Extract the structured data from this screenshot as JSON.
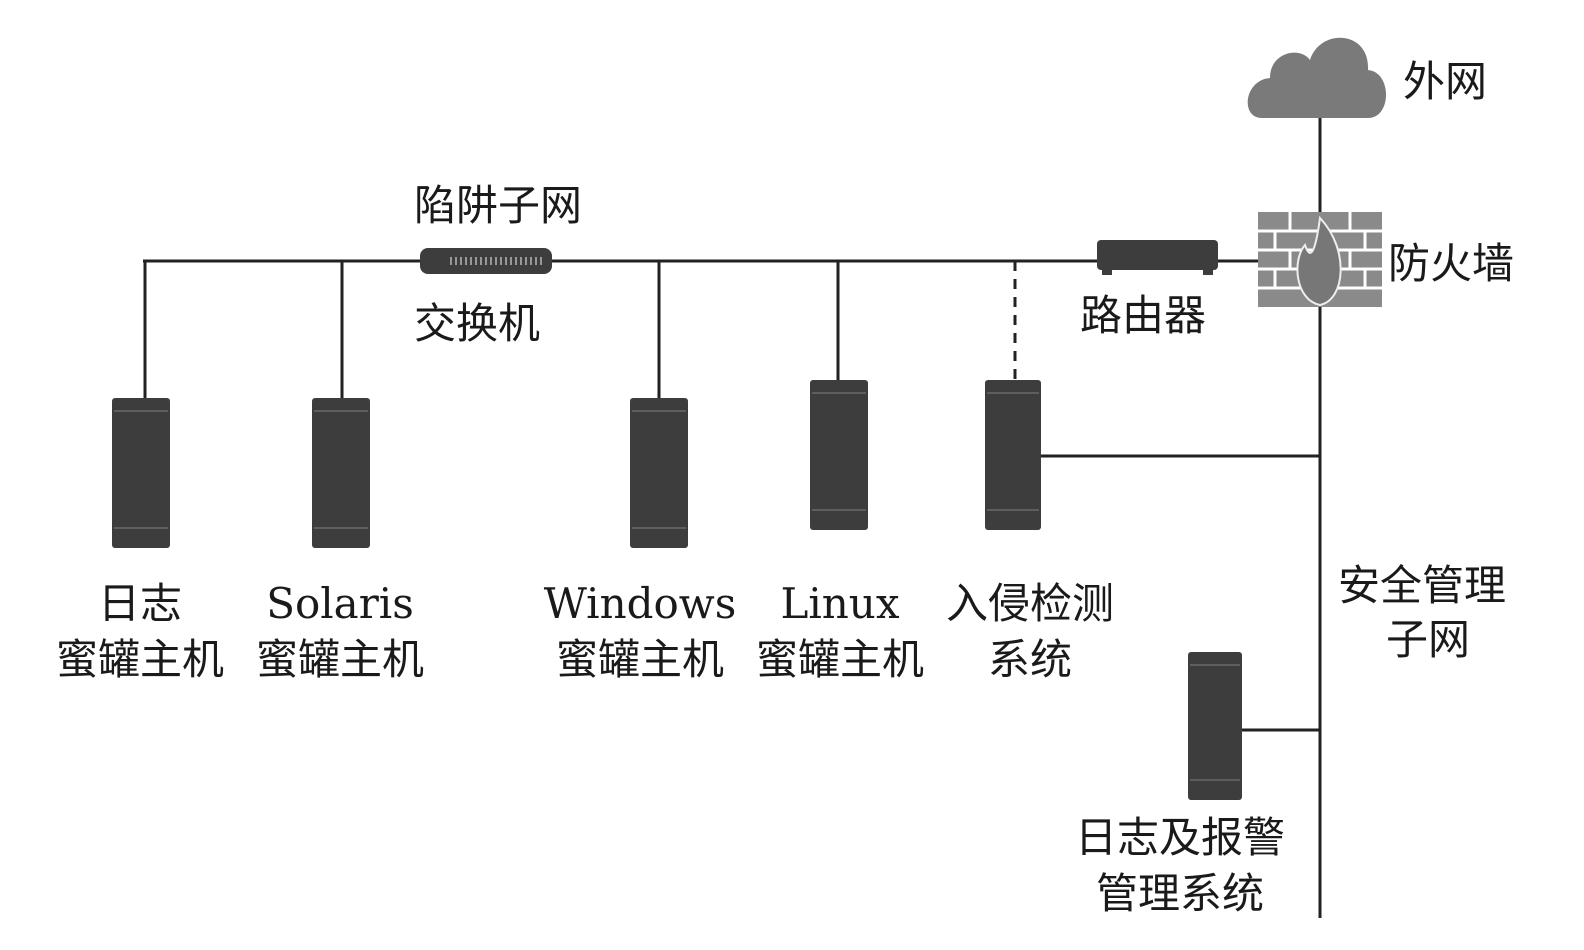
{
  "colors": {
    "device": "#3d3d3d",
    "cloud": "#7a7a7a",
    "firewall": "#8a8a8a",
    "line": "#222222"
  },
  "labels": {
    "internet": "外网",
    "firewall": "防火墙",
    "router": "路由器",
    "trap_subnet": "陷阱子网",
    "switch": "交换机",
    "security_subnet": [
      "安全管理",
      "子网"
    ],
    "hosts": [
      {
        "line1": "日志",
        "line2": "蜜罐主机"
      },
      {
        "line1": "Solaris",
        "line2": "蜜罐主机"
      },
      {
        "line1": "Windows",
        "line2": "蜜罐主机"
      },
      {
        "line1": "Linux",
        "line2": "蜜罐主机"
      },
      {
        "line1": "入侵检测",
        "line2": "系统"
      }
    ],
    "log_alarm": [
      "日志及报警",
      "管理系统"
    ]
  }
}
